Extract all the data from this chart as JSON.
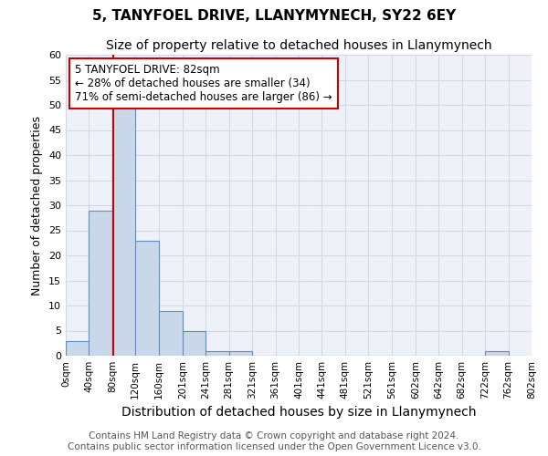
{
  "title": "5, TANYFOEL DRIVE, LLANYMYNECH, SY22 6EY",
  "subtitle": "Size of property relative to detached houses in Llanymynech",
  "xlabel": "Distribution of detached houses by size in Llanymynech",
  "ylabel": "Number of detached properties",
  "footer_line1": "Contains HM Land Registry data © Crown copyright and database right 2024.",
  "footer_line2": "Contains public sector information licensed under the Open Government Licence v3.0.",
  "bin_edges": [
    0,
    40,
    80,
    120,
    160,
    201,
    241,
    281,
    321,
    361,
    401,
    441,
    481,
    521,
    561,
    602,
    642,
    682,
    722,
    762,
    802
  ],
  "bin_labels": [
    "0sqm",
    "40sqm",
    "80sqm",
    "120sqm",
    "160sqm",
    "201sqm",
    "241sqm",
    "281sqm",
    "321sqm",
    "361sqm",
    "401sqm",
    "441sqm",
    "481sqm",
    "521sqm",
    "561sqm",
    "602sqm",
    "642sqm",
    "682sqm",
    "722sqm",
    "762sqm",
    "802sqm"
  ],
  "counts": [
    3,
    29,
    50,
    23,
    9,
    5,
    1,
    1,
    0,
    0,
    0,
    0,
    0,
    0,
    0,
    0,
    0,
    0,
    1,
    0
  ],
  "bar_color": "#c8d8e8",
  "bar_edge_color": "#5b8fc9",
  "property_line_x": 82,
  "property_line_color": "#cc0000",
  "annotation_box_text": "5 TANYFOEL DRIVE: 82sqm\n← 28% of detached houses are smaller (34)\n71% of semi-detached houses are larger (86) →",
  "annotation_box_color": "white",
  "annotation_box_edge_color": "#cc0000",
  "ylim": [
    0,
    60
  ],
  "yticks": [
    0,
    5,
    10,
    15,
    20,
    25,
    30,
    35,
    40,
    45,
    50,
    55,
    60
  ],
  "grid_color": "#d0d8e8",
  "title_fontsize": 11,
  "subtitle_fontsize": 10,
  "xlabel_fontsize": 10,
  "ylabel_fontsize": 9,
  "tick_fontsize": 8,
  "xtick_fontsize": 7.5,
  "footer_fontsize": 7.5,
  "annot_fontsize": 8.5
}
